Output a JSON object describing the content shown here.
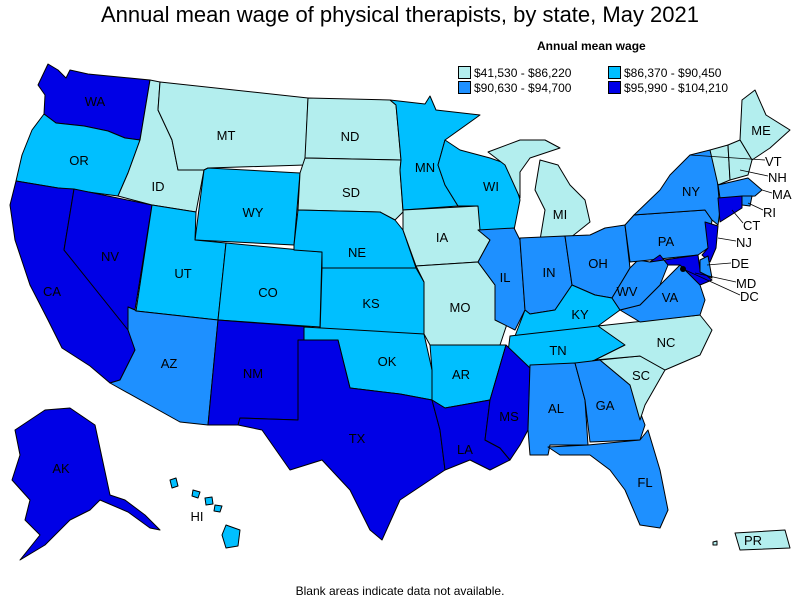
{
  "title": "Annual mean wage of physical therapists, by state, May 2021",
  "legend": {
    "title": "Annual mean wage",
    "items": [
      {
        "label": "$41,530 - $86,220",
        "color": "#b3eeee"
      },
      {
        "label": "$86,370 - $90,450",
        "color": "#00bfff"
      },
      {
        "label": "$90,630 - $94,700",
        "color": "#1e90ff"
      },
      {
        "label": "$95,990 - $104,210",
        "color": "#0000e6"
      }
    ]
  },
  "footnote": "Blank areas indicate data not available.",
  "states": {
    "WA": {
      "label": "WA",
      "tier": 3
    },
    "OR": {
      "label": "OR",
      "tier": 1
    },
    "CA": {
      "label": "CA",
      "tier": 3
    },
    "NV": {
      "label": "NV",
      "tier": 3
    },
    "ID": {
      "label": "ID",
      "tier": 0
    },
    "MT": {
      "label": "MT",
      "tier": 0
    },
    "WY": {
      "label": "WY",
      "tier": 1
    },
    "UT": {
      "label": "UT",
      "tier": 1
    },
    "AZ": {
      "label": "AZ",
      "tier": 2
    },
    "CO": {
      "label": "CO",
      "tier": 1
    },
    "NM": {
      "label": "NM",
      "tier": 3
    },
    "ND": {
      "label": "ND",
      "tier": 0
    },
    "SD": {
      "label": "SD",
      "tier": 0
    },
    "NE": {
      "label": "NE",
      "tier": 1
    },
    "KS": {
      "label": "KS",
      "tier": 1
    },
    "OK": {
      "label": "OK",
      "tier": 1
    },
    "TX": {
      "label": "TX",
      "tier": 3
    },
    "MN": {
      "label": "MN",
      "tier": 1
    },
    "IA": {
      "label": "IA",
      "tier": 0
    },
    "MO": {
      "label": "MO",
      "tier": 0
    },
    "AR": {
      "label": "AR",
      "tier": 1
    },
    "LA": {
      "label": "LA",
      "tier": 3
    },
    "WI": {
      "label": "WI",
      "tier": 1
    },
    "IL": {
      "label": "IL",
      "tier": 2
    },
    "MI": {
      "label": "MI",
      "tier": 0
    },
    "IN": {
      "label": "IN",
      "tier": 2
    },
    "OH": {
      "label": "OH",
      "tier": 2
    },
    "KY": {
      "label": "KY",
      "tier": 1
    },
    "TN": {
      "label": "TN",
      "tier": 1
    },
    "MS": {
      "label": "MS",
      "tier": 3
    },
    "AL": {
      "label": "AL",
      "tier": 2
    },
    "GA": {
      "label": "GA",
      "tier": 2
    },
    "FL": {
      "label": "FL",
      "tier": 2
    },
    "SC": {
      "label": "SC",
      "tier": 0
    },
    "NC": {
      "label": "NC",
      "tier": 0
    },
    "VA": {
      "label": "VA",
      "tier": 2
    },
    "WV": {
      "label": "WV",
      "tier": 2
    },
    "PA": {
      "label": "PA",
      "tier": 2
    },
    "NY": {
      "label": "NY",
      "tier": 2
    },
    "ME": {
      "label": "ME",
      "tier": 0
    },
    "VT": {
      "label": "VT",
      "tier": 0
    },
    "NH": {
      "label": "NH",
      "tier": 0
    },
    "MA": {
      "label": "MA",
      "tier": 2
    },
    "RI": {
      "label": "RI",
      "tier": 2
    },
    "CT": {
      "label": "CT",
      "tier": 3
    },
    "NJ": {
      "label": "NJ",
      "tier": 3
    },
    "DE": {
      "label": "DE",
      "tier": 2
    },
    "MD": {
      "label": "MD",
      "tier": 3
    },
    "DC": {
      "label": "DC",
      "tier": 3
    },
    "AK": {
      "label": "AK",
      "tier": 3
    },
    "HI": {
      "label": "HI",
      "tier": 1
    },
    "PR": {
      "label": "PR",
      "tier": 0
    }
  }
}
